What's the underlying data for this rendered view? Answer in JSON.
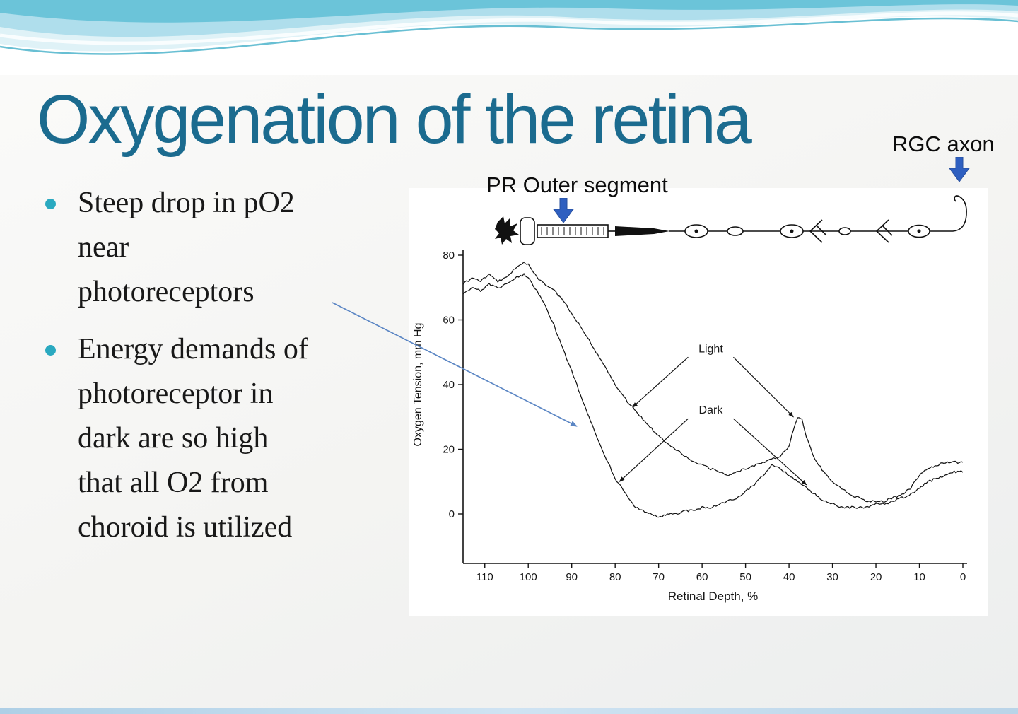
{
  "slide": {
    "title": "Oxygenation of the retina",
    "bullets": [
      {
        "lines": [
          "Steep drop in pO2",
          "near",
          "photoreceptors"
        ]
      },
      {
        "lines": [
          "Energy demands of",
          "photoreceptor in",
          "dark are so high",
          "that all O2 from",
          "choroid is utilized"
        ]
      }
    ]
  },
  "anatomy": {
    "pr_label": "PR Outer segment",
    "rgc_label": "RGC axon"
  },
  "chart_data": {
    "type": "line",
    "title": "",
    "xlabel": "Retinal Depth, %",
    "ylabel": "Oxygen Tension, mm Hg",
    "x_ticks": [
      110,
      100,
      90,
      80,
      70,
      60,
      50,
      40,
      30,
      20,
      10,
      0
    ],
    "y_ticks": [
      0,
      20,
      40,
      60,
      80
    ],
    "xlim": [
      115,
      0
    ],
    "ylim": [
      -3,
      80
    ],
    "x_axis_reversed": true,
    "grid": false,
    "legend_position": "annotations-on-plot",
    "series": [
      {
        "name": "Light",
        "points": [
          [
            115,
            71
          ],
          [
            113,
            73
          ],
          [
            111,
            72
          ],
          [
            109,
            74
          ],
          [
            107,
            72
          ],
          [
            105,
            73
          ],
          [
            103,
            76
          ],
          [
            101,
            78
          ],
          [
            100,
            77
          ],
          [
            98,
            73
          ],
          [
            96,
            71
          ],
          [
            94,
            69
          ],
          [
            92,
            66
          ],
          [
            90,
            62
          ],
          [
            88,
            58
          ],
          [
            86,
            54
          ],
          [
            84,
            49
          ],
          [
            82,
            45
          ],
          [
            80,
            40
          ],
          [
            78,
            36
          ],
          [
            76,
            33
          ],
          [
            74,
            30
          ],
          [
            72,
            27
          ],
          [
            70,
            24
          ],
          [
            68,
            22
          ],
          [
            66,
            20
          ],
          [
            64,
            18
          ],
          [
            62,
            16
          ],
          [
            60,
            15
          ],
          [
            58,
            14
          ],
          [
            56,
            13
          ],
          [
            54,
            12
          ],
          [
            52,
            13
          ],
          [
            50,
            14
          ],
          [
            48,
            15
          ],
          [
            46,
            16
          ],
          [
            44,
            17
          ],
          [
            42,
            18
          ],
          [
            40,
            21
          ],
          [
            39,
            26
          ],
          [
            38,
            30
          ],
          [
            37,
            29
          ],
          [
            36,
            24
          ],
          [
            35,
            20
          ],
          [
            34,
            17
          ],
          [
            32,
            13
          ],
          [
            30,
            10
          ],
          [
            28,
            8
          ],
          [
            26,
            6
          ],
          [
            24,
            5
          ],
          [
            22,
            4
          ],
          [
            20,
            4
          ],
          [
            18,
            4
          ],
          [
            16,
            5
          ],
          [
            14,
            6
          ],
          [
            12,
            8
          ],
          [
            10,
            12
          ],
          [
            8,
            14
          ],
          [
            6,
            15
          ],
          [
            4,
            16
          ],
          [
            2,
            16
          ],
          [
            0,
            16
          ]
        ]
      },
      {
        "name": "Dark",
        "points": [
          [
            115,
            68
          ],
          [
            113,
            70
          ],
          [
            111,
            69
          ],
          [
            109,
            71
          ],
          [
            107,
            70
          ],
          [
            105,
            71
          ],
          [
            103,
            73
          ],
          [
            101,
            74
          ],
          [
            100,
            73
          ],
          [
            98,
            69
          ],
          [
            96,
            64
          ],
          [
            94,
            58
          ],
          [
            92,
            51
          ],
          [
            90,
            44
          ],
          [
            88,
            37
          ],
          [
            86,
            30
          ],
          [
            84,
            23
          ],
          [
            82,
            17
          ],
          [
            80,
            11
          ],
          [
            78,
            7
          ],
          [
            76,
            3
          ],
          [
            74,
            1
          ],
          [
            72,
            0
          ],
          [
            70,
            -1
          ],
          [
            68,
            0
          ],
          [
            66,
            0
          ],
          [
            64,
            1
          ],
          [
            62,
            1
          ],
          [
            60,
            2
          ],
          [
            58,
            2
          ],
          [
            56,
            3
          ],
          [
            54,
            4
          ],
          [
            52,
            5
          ],
          [
            50,
            7
          ],
          [
            48,
            9
          ],
          [
            46,
            12
          ],
          [
            44,
            15
          ],
          [
            42,
            14
          ],
          [
            40,
            12
          ],
          [
            38,
            10
          ],
          [
            36,
            8
          ],
          [
            34,
            6
          ],
          [
            32,
            4
          ],
          [
            30,
            3
          ],
          [
            28,
            2
          ],
          [
            26,
            2
          ],
          [
            24,
            2
          ],
          [
            22,
            2
          ],
          [
            20,
            3
          ],
          [
            18,
            3
          ],
          [
            16,
            4
          ],
          [
            14,
            5
          ],
          [
            12,
            6
          ],
          [
            10,
            8
          ],
          [
            8,
            10
          ],
          [
            6,
            11
          ],
          [
            4,
            12
          ],
          [
            2,
            13
          ],
          [
            0,
            13
          ]
        ]
      }
    ],
    "annotations": [
      {
        "text": "Light",
        "depth": 58,
        "value": 50,
        "targets": [
          [
            76,
            33
          ],
          [
            39,
            30
          ]
        ]
      },
      {
        "text": "Dark",
        "depth": 58,
        "value": 31,
        "targets": [
          [
            79,
            10
          ],
          [
            36,
            9
          ]
        ]
      }
    ]
  },
  "colors": {
    "title_teal": "#1b6b8f",
    "bullet_teal": "#2aa9c0",
    "block_arrow_blue": "#2e5fc0",
    "connector_blue": "#5b86c4",
    "curve_black": "#141414"
  }
}
